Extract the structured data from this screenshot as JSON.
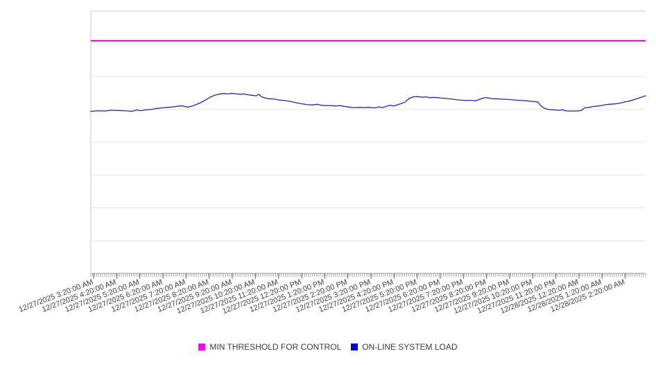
{
  "legend": {
    "items": [
      {
        "label": "MIN THRESHOLD FOR CONTROL",
        "color": "#ff00ff"
      },
      {
        "label": "ON-LINE SYSTEM LOAD",
        "color": "#0000e6"
      }
    ]
  },
  "chart_data": {
    "type": "line",
    "title": "",
    "xlabel": "",
    "ylabel": "",
    "legend_position": "bottom-center",
    "grid": "horizontal",
    "x_type": "datetime",
    "x_tick_labels": [
      "12/27/2025 3:20:00 AM",
      "12/27/2025 4:20:00 AM",
      "12/27/2025 5:20:00 AM",
      "12/27/2025 6:20:00 AM",
      "12/27/2025 7:20:00 AM",
      "12/27/2025 8:20:00 AM",
      "12/27/2025 9:20:00 AM",
      "12/27/2025 10:20:00 AM",
      "12/27/2025 11:20:00 AM",
      "12/27/2025 12:20:00 PM",
      "12/27/2025 1:20:00 PM",
      "12/27/2025 2:20:00 PM",
      "12/27/2025 3:20:00 PM",
      "12/27/2025 4:20:00 PM",
      "12/27/2025 5:20:00 PM",
      "12/27/2025 6:20:00 PM",
      "12/27/2025 7:20:00 PM",
      "12/27/2025 8:20:00 PM",
      "12/27/2025 9:20:00 PM",
      "12/27/2025 10:20:00 PM",
      "12/27/2025 11:20:00 PM",
      "12/28/2025 12:20:00 AM",
      "12/28/2025 1:20:00 AM",
      "12/28/2025 2:20:00 AM"
    ],
    "x_minor_ticks_per_interval": 12,
    "y_axis": {
      "tick_labels_visible": false,
      "gridline_divisions": 8
    },
    "axis_color": "#9a9a9a",
    "grid_color": "#e8e5e5",
    "border_color": "#c9c9c9",
    "label_color": "#3f3f3f",
    "series": [
      {
        "name": "MIN THRESHOLD FOR CONTROL",
        "kind": "threshold",
        "color": "#cc00cc",
        "y_frac": 0.887
      },
      {
        "name": "ON-LINE SYSTEM LOAD",
        "kind": "line",
        "color": "#2222c4",
        "points_frac": [
          [
            0.0,
            0.618
          ],
          [
            0.014,
            0.62
          ],
          [
            0.026,
            0.619
          ],
          [
            0.036,
            0.622
          ],
          [
            0.049,
            0.621
          ],
          [
            0.061,
            0.62
          ],
          [
            0.074,
            0.618
          ],
          [
            0.083,
            0.623
          ],
          [
            0.09,
            0.62
          ],
          [
            0.099,
            0.624
          ],
          [
            0.109,
            0.625
          ],
          [
            0.119,
            0.629
          ],
          [
            0.129,
            0.631
          ],
          [
            0.139,
            0.633
          ],
          [
            0.149,
            0.635
          ],
          [
            0.158,
            0.638
          ],
          [
            0.165,
            0.639
          ],
          [
            0.17,
            0.636
          ],
          [
            0.176,
            0.634
          ],
          [
            0.183,
            0.638
          ],
          [
            0.19,
            0.644
          ],
          [
            0.199,
            0.652
          ],
          [
            0.208,
            0.663
          ],
          [
            0.215,
            0.672
          ],
          [
            0.223,
            0.679
          ],
          [
            0.231,
            0.683
          ],
          [
            0.239,
            0.686
          ],
          [
            0.246,
            0.684
          ],
          [
            0.254,
            0.686
          ],
          [
            0.261,
            0.685
          ],
          [
            0.269,
            0.683
          ],
          [
            0.276,
            0.684
          ],
          [
            0.284,
            0.681
          ],
          [
            0.291,
            0.679
          ],
          [
            0.298,
            0.677
          ],
          [
            0.303,
            0.683
          ],
          [
            0.308,
            0.673
          ],
          [
            0.314,
            0.669
          ],
          [
            0.321,
            0.666
          ],
          [
            0.33,
            0.665
          ],
          [
            0.339,
            0.661
          ],
          [
            0.349,
            0.659
          ],
          [
            0.359,
            0.656
          ],
          [
            0.369,
            0.651
          ],
          [
            0.379,
            0.647
          ],
          [
            0.389,
            0.644
          ],
          [
            0.399,
            0.642
          ],
          [
            0.408,
            0.645
          ],
          [
            0.415,
            0.641
          ],
          [
            0.424,
            0.64
          ],
          [
            0.433,
            0.64
          ],
          [
            0.441,
            0.638
          ],
          [
            0.449,
            0.64
          ],
          [
            0.456,
            0.637
          ],
          [
            0.465,
            0.634
          ],
          [
            0.474,
            0.632
          ],
          [
            0.484,
            0.633
          ],
          [
            0.491,
            0.632
          ],
          [
            0.501,
            0.633
          ],
          [
            0.511,
            0.631
          ],
          [
            0.52,
            0.635
          ],
          [
            0.526,
            0.632
          ],
          [
            0.534,
            0.638
          ],
          [
            0.54,
            0.641
          ],
          [
            0.546,
            0.638
          ],
          [
            0.553,
            0.643
          ],
          [
            0.559,
            0.647
          ],
          [
            0.566,
            0.653
          ],
          [
            0.574,
            0.667
          ],
          [
            0.581,
            0.673
          ],
          [
            0.589,
            0.674
          ],
          [
            0.596,
            0.672
          ],
          [
            0.604,
            0.673
          ],
          [
            0.611,
            0.67
          ],
          [
            0.619,
            0.671
          ],
          [
            0.626,
            0.67
          ],
          [
            0.634,
            0.668
          ],
          [
            0.641,
            0.667
          ],
          [
            0.649,
            0.665
          ],
          [
            0.656,
            0.663
          ],
          [
            0.664,
            0.661
          ],
          [
            0.671,
            0.66
          ],
          [
            0.679,
            0.659
          ],
          [
            0.686,
            0.66
          ],
          [
            0.694,
            0.658
          ],
          [
            0.701,
            0.664
          ],
          [
            0.708,
            0.669
          ],
          [
            0.714,
            0.67
          ],
          [
            0.721,
            0.667
          ],
          [
            0.729,
            0.666
          ],
          [
            0.736,
            0.665
          ],
          [
            0.745,
            0.664
          ],
          [
            0.754,
            0.663
          ],
          [
            0.763,
            0.661
          ],
          [
            0.771,
            0.66
          ],
          [
            0.779,
            0.659
          ],
          [
            0.786,
            0.658
          ],
          [
            0.794,
            0.656
          ],
          [
            0.8,
            0.655
          ],
          [
            0.806,
            0.653
          ],
          [
            0.811,
            0.64
          ],
          [
            0.816,
            0.631
          ],
          [
            0.823,
            0.626
          ],
          [
            0.83,
            0.624
          ],
          [
            0.838,
            0.623
          ],
          [
            0.844,
            0.622
          ],
          [
            0.85,
            0.624
          ],
          [
            0.855,
            0.62
          ],
          [
            0.861,
            0.619
          ],
          [
            0.869,
            0.619
          ],
          [
            0.876,
            0.619
          ],
          [
            0.884,
            0.621
          ],
          [
            0.89,
            0.631
          ],
          [
            0.898,
            0.633
          ],
          [
            0.905,
            0.636
          ],
          [
            0.913,
            0.638
          ],
          [
            0.92,
            0.64
          ],
          [
            0.928,
            0.643
          ],
          [
            0.935,
            0.645
          ],
          [
            0.943,
            0.646
          ],
          [
            0.95,
            0.648
          ],
          [
            0.958,
            0.651
          ],
          [
            0.965,
            0.655
          ],
          [
            0.973,
            0.658
          ],
          [
            0.98,
            0.663
          ],
          [
            0.986,
            0.667
          ],
          [
            0.993,
            0.672
          ],
          [
            0.996,
            0.675
          ],
          [
            1.0,
            0.677
          ]
        ]
      }
    ]
  }
}
